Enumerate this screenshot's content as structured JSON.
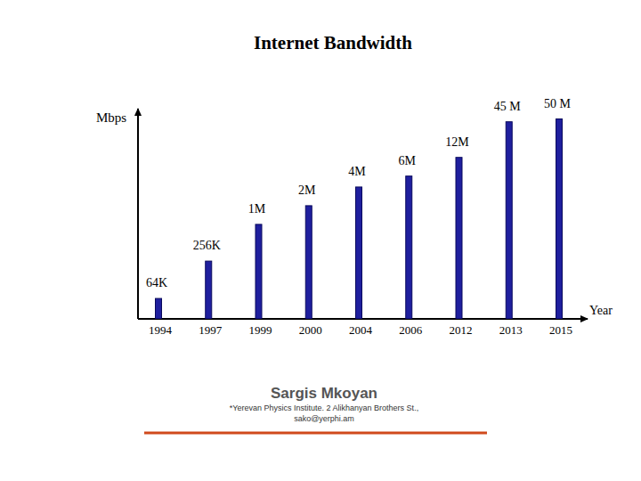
{
  "chart_data": {
    "type": "bar",
    "title": "Internet Bandwidth",
    "y_label": "Mbps",
    "x_label": "Year",
    "categories": [
      "1994",
      "1997",
      "1999",
      "2000",
      "2004",
      "2006",
      "2012",
      "2013",
      "2015"
    ],
    "values": [
      0.064,
      0.256,
      1,
      2,
      4,
      6,
      12,
      45,
      50
    ],
    "value_labels": [
      "64K",
      "256K",
      "1M",
      "2M",
      "4M",
      "6M",
      "12M",
      "45 M",
      "50 M"
    ],
    "data_labels": true,
    "color": "#1f1f9e",
    "log": "y",
    "ylim": [
      0.03,
      60
    ],
    "tick_labels": "x",
    "grid": false
  },
  "footer": {
    "author": "Sargis Mkoyan",
    "affiliation": "*Yerevan Physics Institute. 2 Alikhanyan Brothers St.,",
    "email": "sako@yerphi.am"
  }
}
